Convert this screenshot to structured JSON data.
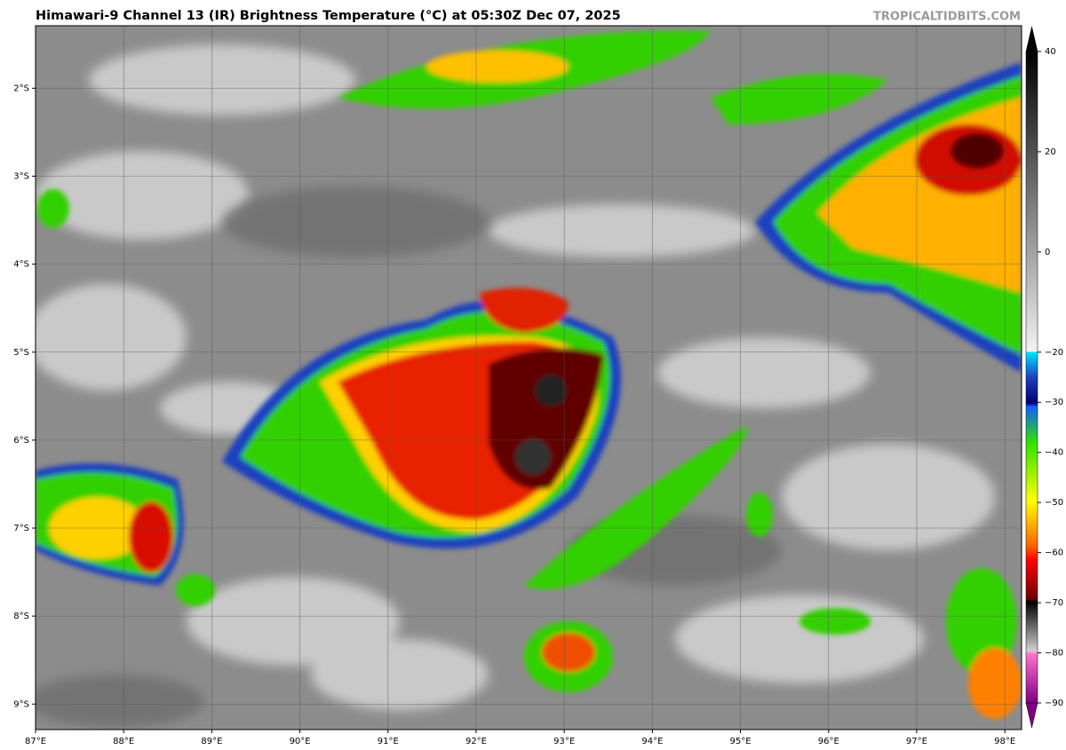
{
  "map": {
    "title": "Himawari-9 Channel 13 (IR) Brightness Temperature (°C) at 05:30Z Dec 07, 2025",
    "credit": "TROPICALTIDBITS.COM",
    "xlim": [
      87,
      98.19
    ],
    "ylim": [
      -9.29,
      -1.29
    ],
    "xticks": [
      {
        "value": 87,
        "label": "87°E"
      },
      {
        "value": 88,
        "label": "88°E"
      },
      {
        "value": 89,
        "label": "89°E"
      },
      {
        "value": 90,
        "label": "90°E"
      },
      {
        "value": 91,
        "label": "91°E"
      },
      {
        "value": 92,
        "label": "92°E"
      },
      {
        "value": 93,
        "label": "93°E"
      },
      {
        "value": 94,
        "label": "94°E"
      },
      {
        "value": 95,
        "label": "95°E"
      },
      {
        "value": 96,
        "label": "96°E"
      },
      {
        "value": 97,
        "label": "97°E"
      },
      {
        "value": 98,
        "label": "98°E"
      }
    ],
    "yticks": [
      {
        "value": -2,
        "label": "2°S"
      },
      {
        "value": -3,
        "label": "3°S"
      },
      {
        "value": -4,
        "label": "4°S"
      },
      {
        "value": -5,
        "label": "5°S"
      },
      {
        "value": -6,
        "label": "6°S"
      },
      {
        "value": -7,
        "label": "7°S"
      },
      {
        "value": -8,
        "label": "8°S"
      },
      {
        "value": -9,
        "label": "9°S"
      }
    ],
    "colorbar": {
      "lim": [
        -90,
        40
      ],
      "ticks": [
        {
          "value": 40,
          "label": "40"
        },
        {
          "value": 20,
          "label": "20"
        },
        {
          "value": 0,
          "label": "0"
        },
        {
          "value": -20,
          "label": "−20"
        },
        {
          "value": -30,
          "label": "−30"
        },
        {
          "value": -40,
          "label": "−40"
        },
        {
          "value": -50,
          "label": "−50"
        },
        {
          "value": -60,
          "label": "−60"
        },
        {
          "value": -70,
          "label": "−70"
        },
        {
          "value": -80,
          "label": "−80"
        },
        {
          "value": -90,
          "label": "−90"
        }
      ]
    }
  }
}
